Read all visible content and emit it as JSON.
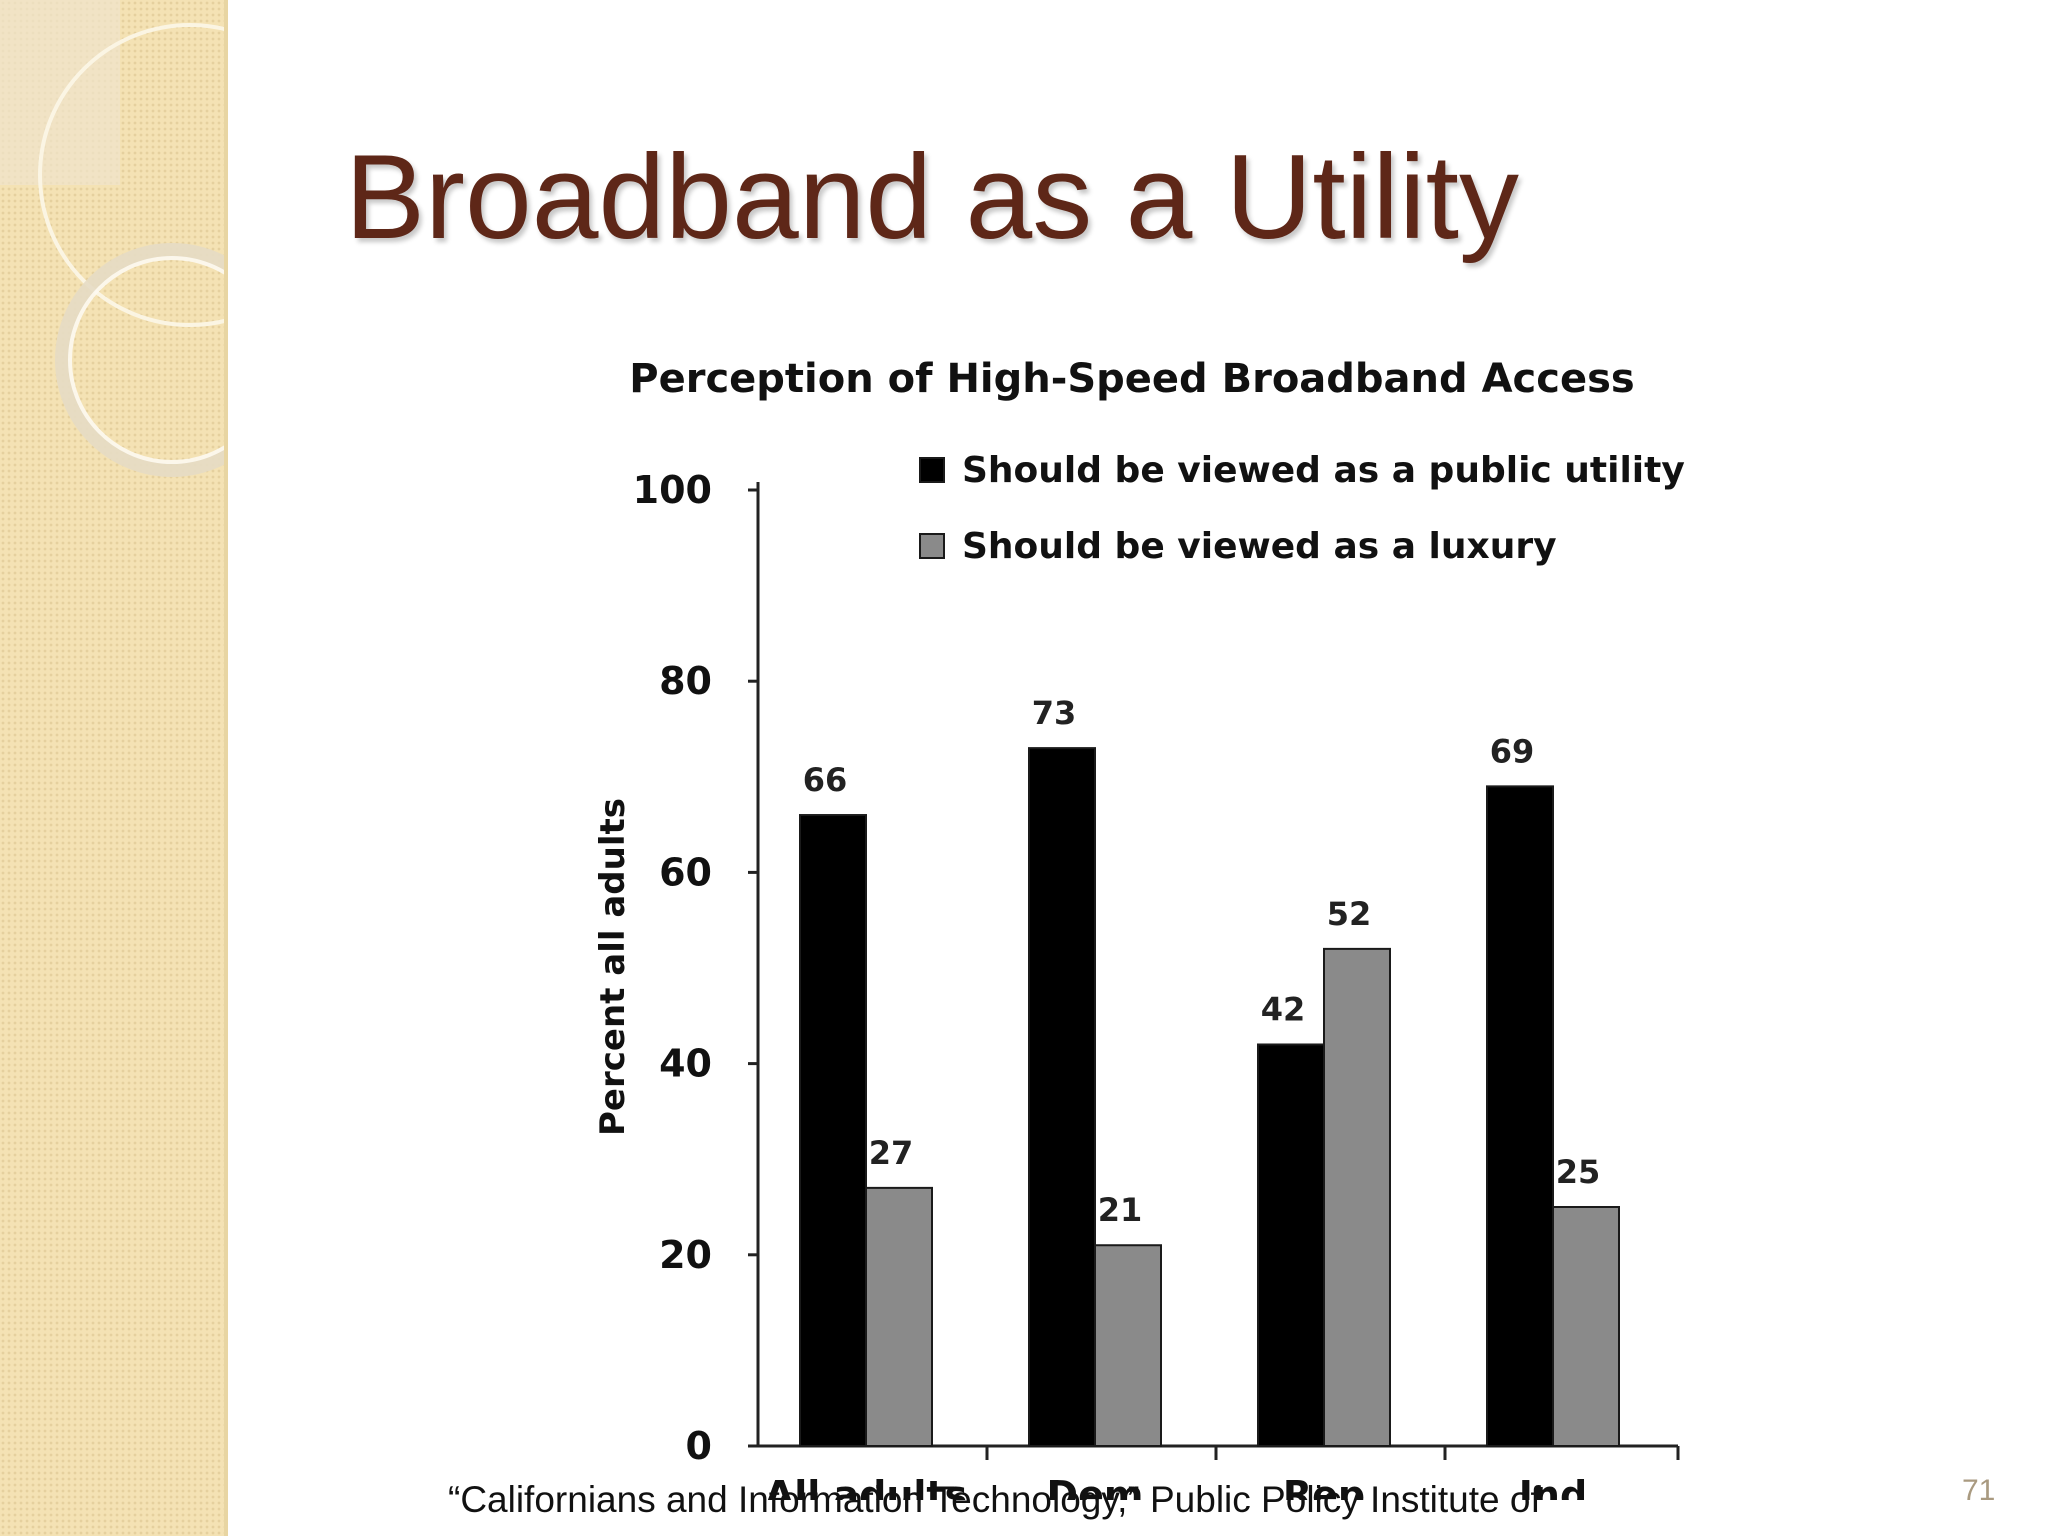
{
  "slide": {
    "title": "Broadband as a Utility",
    "citation": "“Californians and Information Technology,” Public Policy Institute of",
    "page_number": "71"
  },
  "colors": {
    "title": "#5e2718",
    "sidebar": "#f4e2b4",
    "utility_bar": "#000000",
    "luxury_bar": "#8a8a8a"
  },
  "chart_data": {
    "type": "bar",
    "title": "Perception of High-Speed Broadband Access",
    "ylabel": "Percent all adults",
    "xlabel": "",
    "ylim": [
      0,
      100
    ],
    "yticks": [
      0,
      20,
      40,
      60,
      80,
      100
    ],
    "categories": [
      "All adults",
      "Dem",
      "Rep",
      "Ind"
    ],
    "series": [
      {
        "name": "Should be viewed as a public utility",
        "values": [
          66,
          73,
          42,
          69
        ],
        "color": "#000000"
      },
      {
        "name": "Should be viewed as a luxury",
        "values": [
          27,
          21,
          52,
          25
        ],
        "color": "#8a8a8a"
      }
    ],
    "legend_position": "top-right",
    "data_labels": true,
    "grid": false
  }
}
